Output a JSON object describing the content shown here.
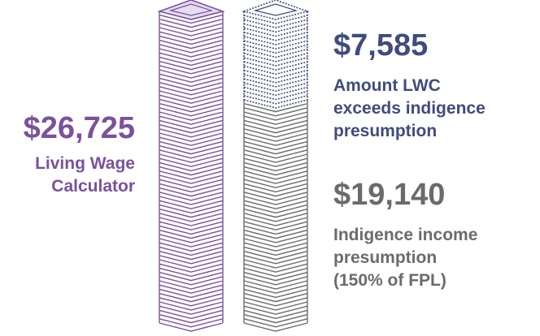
{
  "chart_data": {
    "type": "stacked-bar",
    "categories": [
      null,
      null
    ],
    "series": [
      {
        "name": "Living Wage\nCalculator",
        "color": "#7b519d",
        "values": [
          26725,
          null
        ],
        "value_labels": [
          "$26,725",
          null
        ],
        "dashed": false
      },
      {
        "name": "Indigence income\npresumption\n(150% of FPL)",
        "color": "#6b6b6b",
        "values": [
          null,
          19140
        ],
        "value_labels": [
          null,
          "$19,140"
        ],
        "dashed": false
      },
      {
        "name": "Amount LWC\nexceeds indigence\npresumption",
        "color": "#3f4c7c",
        "values": [
          null,
          7585
        ],
        "value_labels": [
          null,
          "$7,585"
        ],
        "dashed": true
      }
    ]
  }
}
